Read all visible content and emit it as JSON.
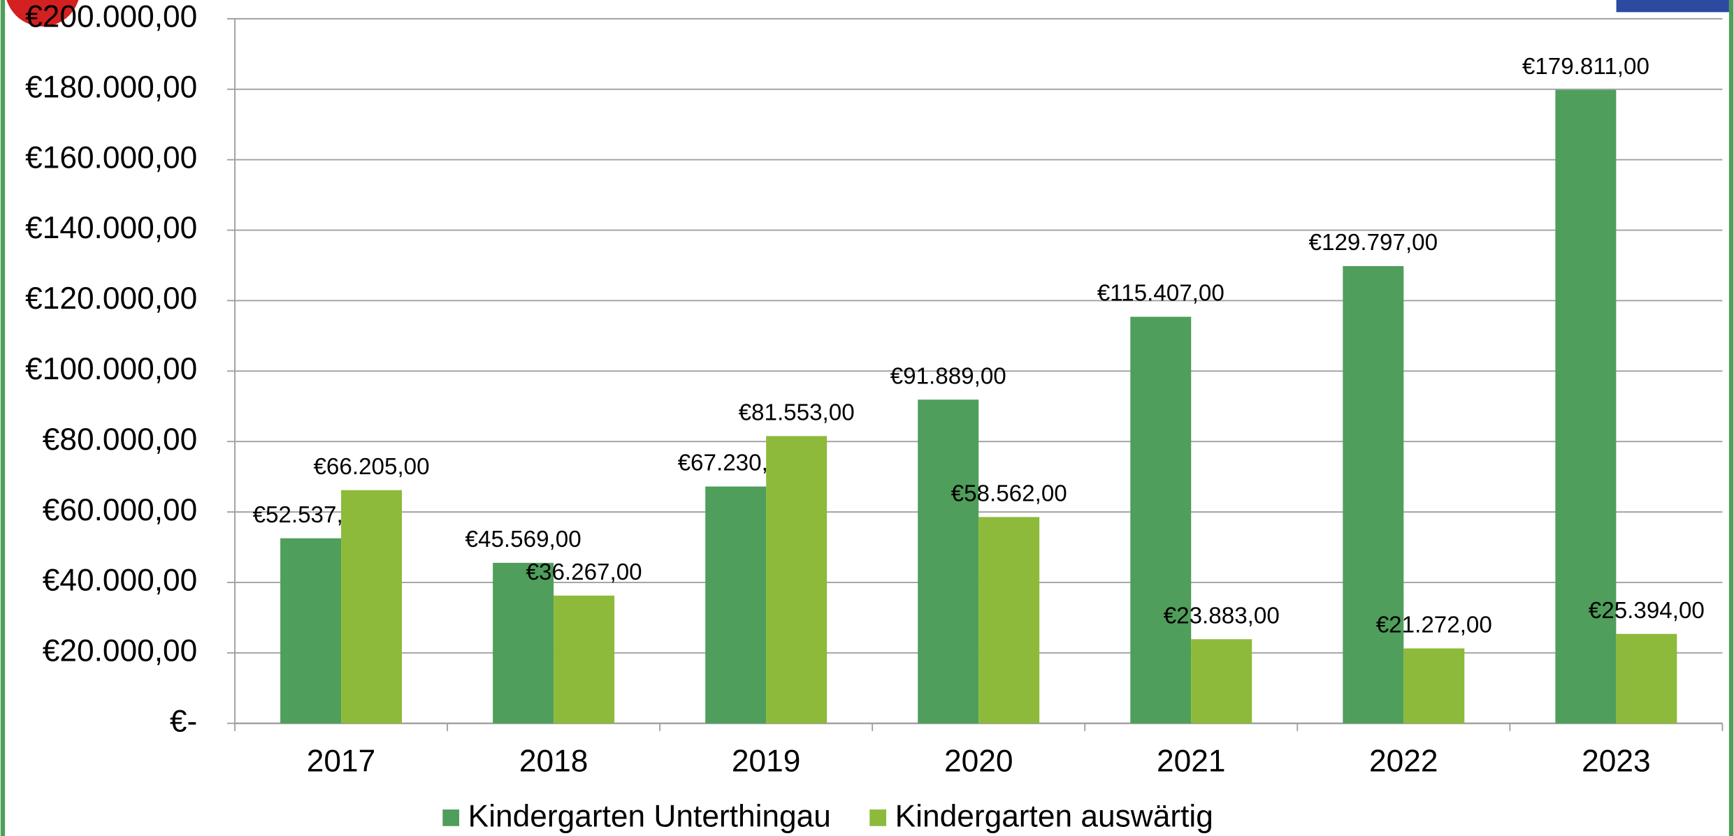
{
  "chart_data": {
    "type": "bar",
    "categories": [
      "2017",
      "2018",
      "2019",
      "2020",
      "2021",
      "2022",
      "2023"
    ],
    "series": [
      {
        "name": "Kindergarten Unterthingau",
        "color": "#4f9e5b",
        "values": [
          52537,
          45569,
          67230,
          91889,
          115407,
          129797,
          179811
        ],
        "value_labels": [
          "€52.537,00",
          "€45.569,00",
          "€67.230,00",
          "€91.889,00",
          "€115.407,00",
          "€129.797,00",
          "€179.811,00"
        ]
      },
      {
        "name": "Kindergarten auswärtig",
        "color": "#8dba3a",
        "values": [
          66205,
          36267,
          81553,
          58562,
          23883,
          21272,
          25394
        ],
        "value_labels": [
          "€66.205,00",
          "€36.267,00",
          "€81.553,00",
          "€58.562,00",
          "€23.883,00",
          "€21.272,00",
          "€25.394,00"
        ]
      }
    ],
    "ylim": [
      0,
      200000
    ],
    "yticks": [
      {
        "value": 0,
        "label": "€-"
      },
      {
        "value": 20000,
        "label": "€20.000,00"
      },
      {
        "value": 40000,
        "label": "€40.000,00"
      },
      {
        "value": 60000,
        "label": "€60.000,00"
      },
      {
        "value": 80000,
        "label": "€80.000,00"
      },
      {
        "value": 100000,
        "label": "€100.000,00"
      },
      {
        "value": 120000,
        "label": "€120.000,00"
      },
      {
        "value": 140000,
        "label": "€140.000,00"
      },
      {
        "value": 160000,
        "label": "€160.000,00"
      },
      {
        "value": 180000,
        "label": "€180.000,00"
      },
      {
        "value": 200000,
        "label": "€200.000,00"
      }
    ],
    "grid": true,
    "legend": "bottom"
  }
}
